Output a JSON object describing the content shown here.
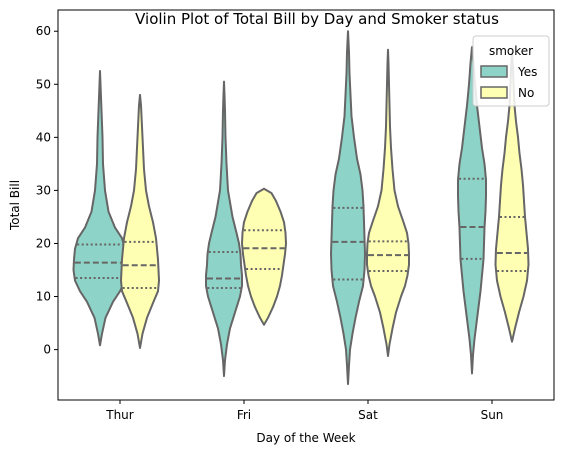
{
  "chart_data": {
    "type": "violin",
    "title": "Violin Plot of Total Bill by Day and Smoker status",
    "xlabel": "Day of the Week",
    "ylabel": "Total Bill",
    "categories": [
      "Thur",
      "Fri",
      "Sat",
      "Sun"
    ],
    "ylim": [
      -9.5,
      64
    ],
    "yticks": [
      0,
      10,
      20,
      30,
      40,
      50,
      60
    ],
    "grid": false,
    "legend": {
      "title": "smoker",
      "placement": "top-right"
    },
    "series": [
      {
        "name": "Yes",
        "color": "#8dd3c7",
        "violins": [
          {
            "category": "Thur",
            "q1": 13.5,
            "median": 16.4,
            "q3": 19.8,
            "profile": [
              [
                0.8,
                0
              ],
              [
                3,
                4
              ],
              [
                6,
                11
              ],
              [
                9,
                26
              ],
              [
                11,
                40
              ],
              [
                13,
                50
              ],
              [
                15,
                53
              ],
              [
                17,
                52
              ],
              [
                19,
                50
              ],
              [
                21,
                44
              ],
              [
                23,
                30
              ],
              [
                26,
                17
              ],
              [
                30,
                10
              ],
              [
                35,
                6
              ],
              [
                40,
                5
              ],
              [
                45,
                3
              ],
              [
                50,
                1
              ],
              [
                52.5,
                0
              ]
            ]
          },
          {
            "category": "Fri",
            "q1": 11.6,
            "median": 13.4,
            "q3": 18.4,
            "profile": [
              [
                -5,
                0
              ],
              [
                -2,
                2
              ],
              [
                1,
                6
              ],
              [
                4,
                12
              ],
              [
                7,
                22
              ],
              [
                10,
                32
              ],
              [
                12,
                36
              ],
              [
                14,
                36
              ],
              [
                16,
                34
              ],
              [
                18,
                33
              ],
              [
                20,
                30
              ],
              [
                22,
                25
              ],
              [
                25,
                17
              ],
              [
                30,
                8
              ],
              [
                35,
                5
              ],
              [
                40,
                3
              ],
              [
                45,
                2
              ],
              [
                48,
                1
              ],
              [
                50.5,
                0
              ]
            ]
          },
          {
            "category": "Sat",
            "q1": 13.2,
            "median": 20.3,
            "q3": 26.7,
            "profile": [
              [
                -6.5,
                0
              ],
              [
                -3,
                2
              ],
              [
                0,
                4
              ],
              [
                3,
                9
              ],
              [
                6,
                15
              ],
              [
                9,
                22
              ],
              [
                12,
                30
              ],
              [
                15,
                33
              ],
              [
                18,
                34
              ],
              [
                21,
                33
              ],
              [
                24,
                32
              ],
              [
                27,
                31
              ],
              [
                30,
                29
              ],
              [
                33,
                25
              ],
              [
                36,
                18
              ],
              [
                40,
                12
              ],
              [
                44,
                7
              ],
              [
                48,
                5
              ],
              [
                52,
                3
              ],
              [
                56,
                2
              ],
              [
                60,
                0
              ]
            ]
          },
          {
            "category": "Sun",
            "q1": 17.1,
            "median": 23.1,
            "q3": 32.2,
            "profile": [
              [
                -4.5,
                0
              ],
              [
                -1,
                2
              ],
              [
                2,
                5
              ],
              [
                5,
                9
              ],
              [
                8,
                13
              ],
              [
                11,
                17
              ],
              [
                14,
                20
              ],
              [
                17,
                23
              ],
              [
                20,
                24
              ],
              [
                23,
                25
              ],
              [
                26,
                27
              ],
              [
                29,
                28
              ],
              [
                32,
                28
              ],
              [
                35,
                25
              ],
              [
                38,
                20
              ],
              [
                42,
                15
              ],
              [
                46,
                10
              ],
              [
                50,
                6
              ],
              [
                54,
                3
              ],
              [
                57,
                0
              ]
            ]
          }
        ]
      },
      {
        "name": "No",
        "color": "#ffffb3",
        "violins": [
          {
            "category": "Thur",
            "q1": 11.6,
            "median": 15.9,
            "q3": 20.3,
            "profile": [
              [
                0.3,
                0
              ],
              [
                3,
                5
              ],
              [
                6,
                14
              ],
              [
                9,
                27
              ],
              [
                11,
                36
              ],
              [
                13,
                38
              ],
              [
                15,
                37
              ],
              [
                17,
                36
              ],
              [
                19,
                34
              ],
              [
                21,
                32
              ],
              [
                24,
                26
              ],
              [
                27,
                18
              ],
              [
                30,
                12
              ],
              [
                34,
                8
              ],
              [
                38,
                6
              ],
              [
                42,
                4
              ],
              [
                46,
                2
              ],
              [
                48,
                0
              ]
            ]
          },
          {
            "category": "Fri",
            "q1": 15.2,
            "median": 19.1,
            "q3": 22.5,
            "profile": [
              [
                4.7,
                0
              ],
              [
                6,
                8
              ],
              [
                8,
                18
              ],
              [
                10,
                26
              ],
              [
                12,
                32
              ],
              [
                14,
                36
              ],
              [
                16,
                39
              ],
              [
                18,
                42
              ],
              [
                20,
                44
              ],
              [
                22,
                43
              ],
              [
                24,
                40
              ],
              [
                26,
                33
              ],
              [
                28,
                24
              ],
              [
                29.5,
                15
              ],
              [
                30.3,
                0
              ]
            ]
          },
          {
            "category": "Sat",
            "q1": 14.8,
            "median": 17.8,
            "q3": 20.4,
            "profile": [
              [
                -1.2,
                0
              ],
              [
                1,
                3
              ],
              [
                4,
                9
              ],
              [
                7,
                16
              ],
              [
                10,
                26
              ],
              [
                12,
                34
              ],
              [
                14,
                39
              ],
              [
                16,
                42
              ],
              [
                18,
                42
              ],
              [
                20,
                41
              ],
              [
                22,
                38
              ],
              [
                24,
                31
              ],
              [
                27,
                20
              ],
              [
                30,
                13
              ],
              [
                34,
                9
              ],
              [
                38,
                6
              ],
              [
                42,
                4
              ],
              [
                46,
                3
              ],
              [
                50,
                2
              ],
              [
                54,
                1
              ],
              [
                56.5,
                0
              ]
            ]
          },
          {
            "category": "Sun",
            "q1": 14.8,
            "median": 18.2,
            "q3": 25.0,
            "profile": [
              [
                1.5,
                0
              ],
              [
                4,
                6
              ],
              [
                7,
                14
              ],
              [
                10,
                23
              ],
              [
                13,
                30
              ],
              [
                16,
                33
              ],
              [
                19,
                32
              ],
              [
                22,
                29
              ],
              [
                25,
                26
              ],
              [
                28,
                24
              ],
              [
                31,
                22
              ],
              [
                34,
                19
              ],
              [
                37,
                15
              ],
              [
                40,
                12
              ],
              [
                43,
                8
              ],
              [
                46,
                5
              ],
              [
                50,
                3
              ],
              [
                53,
                2
              ],
              [
                56,
                0
              ]
            ]
          }
        ]
      }
    ]
  }
}
